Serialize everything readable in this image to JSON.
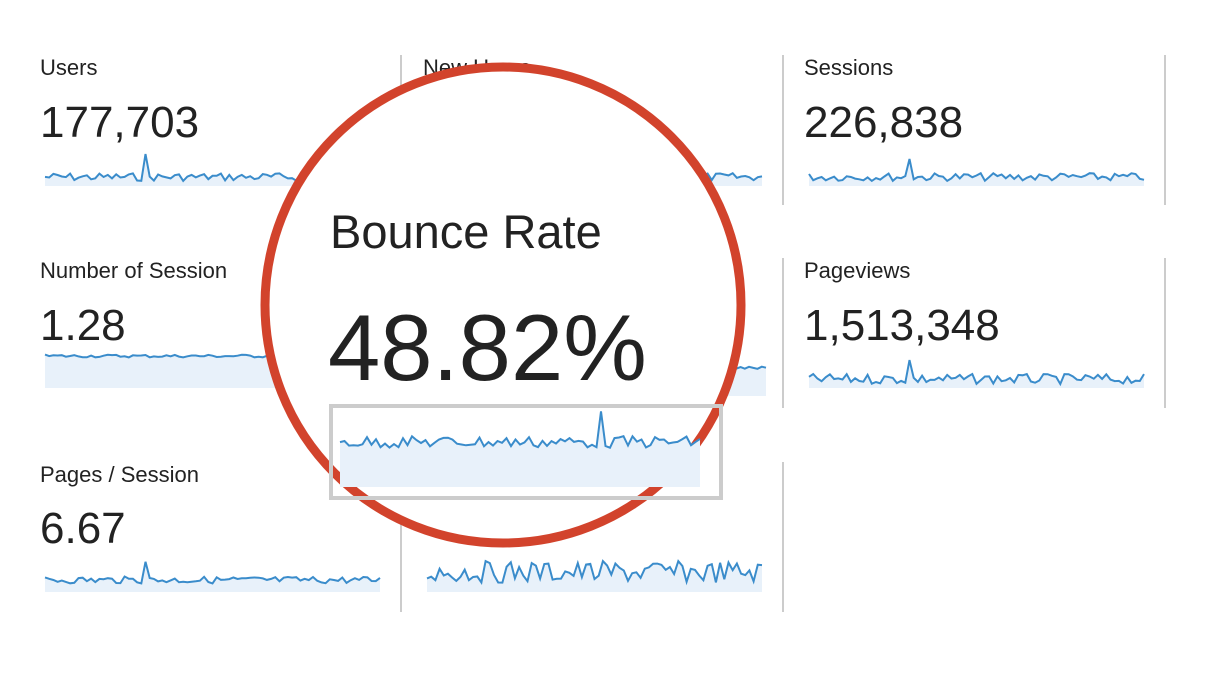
{
  "cards": [
    {
      "label": "Users",
      "value": "177,703"
    },
    {
      "label": "New Users"
    },
    {
      "label": "Sessions",
      "value": "226,838"
    },
    {
      "label": "Number of Session",
      "value": "1.28"
    },
    {
      "label": "Pageviews",
      "value": "1,513,348"
    },
    {
      "label": "Pages / Session",
      "value": "6.67"
    }
  ],
  "magnifier": {
    "label": "Bounce Rate",
    "value": "48.82%"
  }
}
